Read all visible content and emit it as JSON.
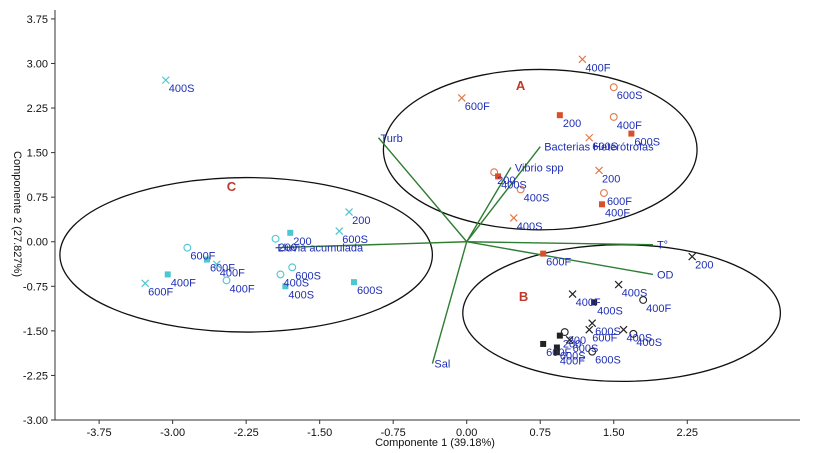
{
  "chart_data": {
    "type": "scatter",
    "title": "",
    "xlabel": "Componente 1 (39.18%)",
    "ylabel": "Componente 2 (27.827%)",
    "xlim": [
      -4.2,
      3.4
    ],
    "ylim": [
      -3.0,
      3.9
    ],
    "xticks": [
      "-3.75",
      "-3.00",
      "-2.25",
      "-1.50",
      "-0.75",
      "0.00",
      "0.75",
      "1.50",
      "2.25"
    ],
    "xtick_values": [
      -3.75,
      -3.0,
      -2.25,
      -1.5,
      -0.75,
      0.0,
      0.75,
      1.5,
      2.25
    ],
    "yticks": [
      "3.75",
      "3.00",
      "2.25",
      "1.50",
      "0.75",
      "0.00",
      "-0.75",
      "-1.50",
      "-2.25",
      "-3.00"
    ],
    "ytick_values": [
      3.75,
      3.0,
      2.25,
      1.5,
      0.75,
      0.0,
      -0.75,
      -1.5,
      -2.25,
      -3.0
    ],
    "grid": false,
    "colors": {
      "group_A": "#e07a4a",
      "group_A_square": "#d94f2a",
      "group_B": "#222222",
      "group_C": "#4cc6cf",
      "loading": "#2e7d32",
      "label": "#1f2fb5",
      "group_letter": "#c0392b"
    },
    "groups": [
      {
        "label": "A",
        "x": 0.55,
        "y": 2.55,
        "ellipse": {
          "cx": 0.75,
          "cy": 1.55,
          "rx": 1.6,
          "ry": 1.35
        }
      },
      {
        "label": "B",
        "x": 0.58,
        "y": -1.0,
        "ellipse": {
          "cx": 1.58,
          "cy": -1.2,
          "rx": 1.62,
          "ry": 1.15
        }
      },
      {
        "label": "C",
        "x": -2.4,
        "y": 0.85,
        "ellipse": {
          "cx": -2.25,
          "cy": -0.22,
          "rx": 1.9,
          "ry": 1.3
        }
      }
    ],
    "series": [
      {
        "group": "A",
        "points": [
          {
            "label": "400F",
            "x": 1.18,
            "y": 3.07,
            "marker": "x"
          },
          {
            "label": "600F",
            "x": -0.05,
            "y": 2.42,
            "marker": "x"
          },
          {
            "label": "600S",
            "x": 1.5,
            "y": 2.6,
            "marker": "o"
          },
          {
            "label": "200",
            "x": 0.95,
            "y": 2.13,
            "marker": "s"
          },
          {
            "label": "400F",
            "x": 1.5,
            "y": 2.1,
            "marker": "o"
          },
          {
            "label": "600S",
            "x": 1.68,
            "y": 1.82,
            "marker": "s"
          },
          {
            "label": "600S",
            "x": 1.25,
            "y": 1.75,
            "marker": "x"
          },
          {
            "label": "200",
            "x": 0.28,
            "y": 1.17,
            "marker": "o"
          },
          {
            "label": "400S",
            "x": 0.32,
            "y": 1.1,
            "marker": "s"
          },
          {
            "label": "400S",
            "x": 0.55,
            "y": 0.88,
            "marker": "o"
          },
          {
            "label": "200",
            "x": 1.35,
            "y": 1.2,
            "marker": "x"
          },
          {
            "label": "600F",
            "x": 1.4,
            "y": 0.82,
            "marker": "o"
          },
          {
            "label": "400F",
            "x": 1.38,
            "y": 0.63,
            "marker": "s"
          },
          {
            "label": "400S",
            "x": 0.48,
            "y": 0.4,
            "marker": "x"
          },
          {
            "label": "600F",
            "x": 0.78,
            "y": -0.2,
            "marker": "s"
          }
        ]
      },
      {
        "group": "B",
        "points": [
          {
            "label": "200",
            "x": 2.3,
            "y": -0.25,
            "marker": "x"
          },
          {
            "label": "400S",
            "x": 1.55,
            "y": -0.72,
            "marker": "x"
          },
          {
            "label": "400F",
            "x": 1.08,
            "y": -0.88,
            "marker": "x"
          },
          {
            "label": "400S",
            "x": 1.3,
            "y": -1.02,
            "marker": "s"
          },
          {
            "label": "400F",
            "x": 1.8,
            "y": -0.98,
            "marker": "o"
          },
          {
            "label": "600S",
            "x": 1.28,
            "y": -1.37,
            "marker": "x"
          },
          {
            "label": "600F",
            "x": 1.25,
            "y": -1.48,
            "marker": "x"
          },
          {
            "label": "400S",
            "x": 1.6,
            "y": -1.48,
            "marker": "x"
          },
          {
            "label": "200",
            "x": 1.0,
            "y": -1.52,
            "marker": "o"
          },
          {
            "label": "400S",
            "x": 1.7,
            "y": -1.55,
            "marker": "o"
          },
          {
            "label": "200",
            "x": 0.95,
            "y": -1.58,
            "marker": "s"
          },
          {
            "label": "600S",
            "x": 1.05,
            "y": -1.65,
            "marker": "x"
          },
          {
            "label": "600F",
            "x": 0.78,
            "y": -1.72,
            "marker": "s"
          },
          {
            "label": "600S",
            "x": 0.92,
            "y": -1.78,
            "marker": "s"
          },
          {
            "label": "400F",
            "x": 0.92,
            "y": -1.86,
            "marker": "s"
          },
          {
            "label": "600S",
            "x": 1.28,
            "y": -1.85,
            "marker": "o"
          }
        ]
      },
      {
        "group": "C",
        "points": [
          {
            "label": "400S",
            "x": -3.07,
            "y": 2.72,
            "marker": "x"
          },
          {
            "label": "200",
            "x": -1.2,
            "y": 0.5,
            "marker": "x"
          },
          {
            "label": "200",
            "x": -1.8,
            "y": 0.15,
            "marker": "s"
          },
          {
            "label": "200",
            "x": -1.95,
            "y": 0.05,
            "marker": "o"
          },
          {
            "label": "600S",
            "x": -1.3,
            "y": 0.18,
            "marker": "x"
          },
          {
            "label": "600F",
            "x": -2.85,
            "y": -0.1,
            "marker": "o"
          },
          {
            "label": "600F",
            "x": -2.65,
            "y": -0.3,
            "marker": "s"
          },
          {
            "label": "400F",
            "x": -2.55,
            "y": -0.38,
            "marker": "x"
          },
          {
            "label": "600S",
            "x": -1.78,
            "y": -0.43,
            "marker": "o"
          },
          {
            "label": "400S",
            "x": -1.9,
            "y": -0.55,
            "marker": "o"
          },
          {
            "label": "400F",
            "x": -3.05,
            "y": -0.55,
            "marker": "s"
          },
          {
            "label": "400F",
            "x": -2.45,
            "y": -0.65,
            "marker": "o"
          },
          {
            "label": "600F",
            "x": -3.28,
            "y": -0.7,
            "marker": "x"
          },
          {
            "label": "600S",
            "x": -1.15,
            "y": -0.68,
            "marker": "s"
          },
          {
            "label": "400S",
            "x": -1.85,
            "y": -0.75,
            "marker": "s"
          }
        ]
      }
    ],
    "loadings": [
      {
        "label": "Turb",
        "x": -0.9,
        "y": 1.75
      },
      {
        "label": "Bacterias Heterótrofas",
        "x": 0.75,
        "y": 1.6
      },
      {
        "label": "Vibrio spp",
        "x": 0.45,
        "y": 1.25
      },
      {
        "label": "Lluvia acumulada",
        "x": -1.95,
        "y": -0.1
      },
      {
        "label": "T°",
        "x": 1.9,
        "y": -0.05
      },
      {
        "label": "OD",
        "x": 1.9,
        "y": -0.55
      },
      {
        "label": "Sal",
        "x": -0.35,
        "y": -2.05
      }
    ]
  }
}
